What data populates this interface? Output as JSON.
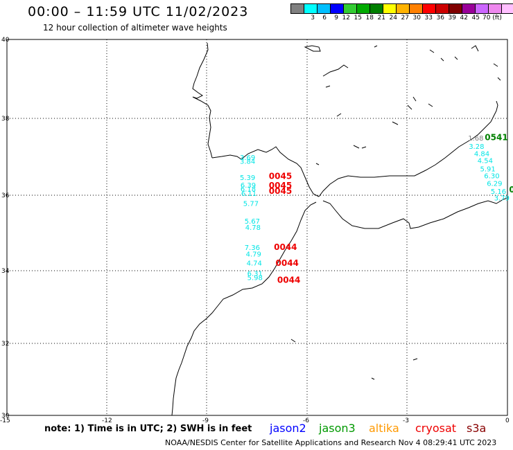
{
  "title": "00:00 – 11:59 UTC 11/02/2023",
  "subtitle": "12 hour collection of altimeter wave heights",
  "colorbar": {
    "colors": [
      "#808080",
      "#00ffff",
      "#00bfff",
      "#0000ff",
      "#33cc33",
      "#00aa00",
      "#007f00",
      "#ffff00",
      "#ffb300",
      "#ff8000",
      "#ff0000",
      "#cc0000",
      "#800000",
      "#990099",
      "#cc66ff",
      "#ee88ee",
      "#ffc0ff",
      "#000000"
    ],
    "labels": [
      "3",
      "6",
      "9",
      "12",
      "15",
      "18",
      "21",
      "24",
      "27",
      "30",
      "33",
      "36",
      "39",
      "42",
      "45",
      "70 (ft)"
    ]
  },
  "axes": {
    "lon_ticks": [
      "-15",
      "-12",
      "-9",
      "-6",
      "-3",
      "0"
    ],
    "lat_ticks": [
      "40",
      "38",
      "36",
      "34",
      "32",
      "30"
    ]
  },
  "observations": [
    {
      "lon": -8.02,
      "lat": 36.92,
      "v": "3.69",
      "color": "#00e5e5"
    },
    {
      "lon": -8.02,
      "lat": 36.82,
      "v": "3.84",
      "color": "#00e5e5"
    },
    {
      "lon": -8.02,
      "lat": 36.4,
      "v": "5.39",
      "color": "#00e5e5"
    },
    {
      "lon": -8.0,
      "lat": 36.2,
      "v": "6.39",
      "color": "#00e5e5"
    },
    {
      "lon": -8.0,
      "lat": 36.1,
      "v": "6.18",
      "color": "#00e5e5"
    },
    {
      "lon": -7.98,
      "lat": 35.98,
      "v": "6.11",
      "color": "#00e5e5"
    },
    {
      "lon": -7.92,
      "lat": 35.72,
      "v": "5.77",
      "color": "#00e5e5"
    },
    {
      "lon": -7.88,
      "lat": 35.25,
      "v": "5.67",
      "color": "#00e5e5"
    },
    {
      "lon": -7.86,
      "lat": 35.08,
      "v": "4.78",
      "color": "#00e5e5"
    },
    {
      "lon": -7.88,
      "lat": 34.55,
      "v": "7.36",
      "color": "#00e5e5"
    },
    {
      "lon": -7.84,
      "lat": 34.38,
      "v": "4.79",
      "color": "#00e5e5"
    },
    {
      "lon": -7.82,
      "lat": 34.14,
      "v": "4.74",
      "color": "#00e5e5"
    },
    {
      "lon": -7.8,
      "lat": 33.86,
      "v": "6.31",
      "color": "#00e5e5"
    },
    {
      "lon": -7.8,
      "lat": 33.74,
      "v": "5.98",
      "color": "#00e5e5"
    },
    {
      "lon": -1.18,
      "lat": 37.42,
      "v": "1.68",
      "color": "#808080"
    },
    {
      "lon": -1.16,
      "lat": 37.21,
      "v": "3.28",
      "color": "#00e5e5"
    },
    {
      "lon": -1.0,
      "lat": 37.02,
      "v": "4.84",
      "color": "#00e5e5"
    },
    {
      "lon": -0.9,
      "lat": 36.84,
      "v": "4.54",
      "color": "#00e5e5"
    },
    {
      "lon": -0.82,
      "lat": 36.62,
      "v": "5.91",
      "color": "#00e5e5"
    },
    {
      "lon": -0.7,
      "lat": 36.44,
      "v": "6.30",
      "color": "#00e5e5"
    },
    {
      "lon": -0.62,
      "lat": 36.24,
      "v": "6.29",
      "color": "#00e5e5"
    },
    {
      "lon": -0.5,
      "lat": 36.04,
      "v": "5.16",
      "color": "#00e5e5"
    },
    {
      "lon": -0.4,
      "lat": 35.86,
      "v": "3.79",
      "color": "#00e5e5"
    }
  ],
  "pass_times": [
    {
      "lon": -7.15,
      "lat": 36.42,
      "t": "0045",
      "color": "#ee0000"
    },
    {
      "lon": -7.15,
      "lat": 36.18,
      "t": "0045",
      "color": "#ee0000"
    },
    {
      "lon": -7.15,
      "lat": 36.04,
      "t": "0045",
      "color": "#ee0000"
    },
    {
      "lon": -7.0,
      "lat": 34.55,
      "t": "0044",
      "color": "#ee0000"
    },
    {
      "lon": -6.95,
      "lat": 34.13,
      "t": "0044",
      "color": "#ee0000"
    },
    {
      "lon": -6.9,
      "lat": 33.67,
      "t": "0044",
      "color": "#ee0000"
    },
    {
      "lon": -0.68,
      "lat": 37.43,
      "t": "0541",
      "color": "#008000"
    },
    {
      "lon": 0.05,
      "lat": 36.07,
      "t": "0",
      "color": "#008000"
    }
  ],
  "footer": {
    "note": "note: 1) Time is in UTC; 2) SWH is in feet",
    "satellites": [
      {
        "name": "jason2",
        "color": "#0000ff"
      },
      {
        "name": "jason3",
        "color": "#009900"
      },
      {
        "name": "altika",
        "color": "#ff9900"
      },
      {
        "name": "cryosat",
        "color": "#ee0000"
      },
      {
        "name": "s3a",
        "color": "#880000"
      }
    ],
    "credit": "NOAA/NESDIS Center for Satellite Applications and Research    Nov  4 08:29:41 UTC 2023"
  }
}
